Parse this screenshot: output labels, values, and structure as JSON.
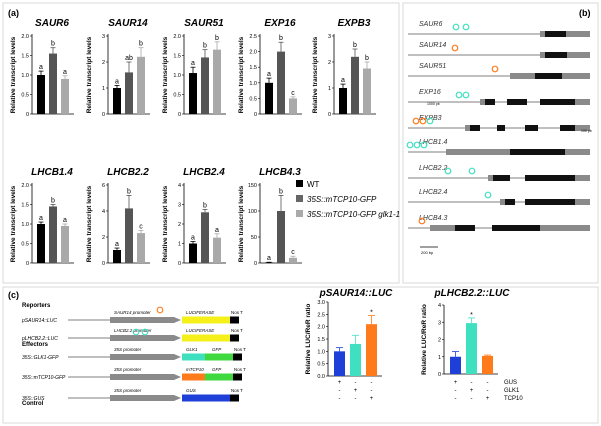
{
  "panel_labels": {
    "a": "(a)",
    "b": "(b)",
    "c": "(c)"
  },
  "ylabel": "Relative transcript levels",
  "colors": {
    "wt": "#000000",
    "mtcp": "#555555",
    "mtcp_glk": "#a9a9a9",
    "gus": "#1f3fd9",
    "glk1": "#3fe0c0",
    "tcp10": "#ff7a1a",
    "luc": "#f5f01a",
    "gfp": "#3fd93f",
    "promoter": "#8a8a8a",
    "legend_mtcp": "#666666",
    "legend_mtcp_glk": "#aaaaaa"
  },
  "legend": [
    {
      "label": "WT",
      "color": "#000000"
    },
    {
      "label": "35S::mTCP10-GFP",
      "color": "#666666"
    },
    {
      "label": "35S::mTCP10-GFP glk1-1",
      "color": "#aaaaaa"
    }
  ],
  "chart_data": [
    {
      "type": "bar",
      "title": "SAUR6",
      "ylabel": "Relative transcript levels",
      "ylim": [
        0,
        2
      ],
      "yticks": [
        "0",
        "0.5",
        "1.0",
        "1.5",
        "2.0"
      ],
      "series": [
        {
          "name": "WT",
          "values": [
            1.0
          ]
        },
        {
          "name": "35S::mTCP10-GFP",
          "values": [
            1.55
          ]
        },
        {
          "name": "35S::mTCP10-GFP glk1-1",
          "values": [
            0.9
          ]
        }
      ],
      "errors": [
        0.1,
        0.15,
        0.08
      ],
      "letters": [
        "a",
        "b",
        "a"
      ]
    },
    {
      "type": "bar",
      "title": "SAUR14",
      "ylabel": "Relative transcript levels",
      "ylim": [
        0,
        3
      ],
      "yticks": [
        "0",
        "1",
        "2",
        "3"
      ],
      "series": [
        {
          "name": "WT",
          "values": [
            1.0
          ]
        },
        {
          "name": "35S::mTCP10-GFP",
          "values": [
            1.6
          ]
        },
        {
          "name": "35S::mTCP10-GFP glk1-1",
          "values": [
            2.2
          ]
        }
      ],
      "errors": [
        0.1,
        0.4,
        0.35
      ],
      "letters": [
        "a",
        "ab",
        "b"
      ]
    },
    {
      "type": "bar",
      "title": "SAUR51",
      "ylabel": "Relative transcript levels",
      "ylim": [
        0,
        2
      ],
      "yticks": [
        "0",
        "0.5",
        "1.0",
        "1.5",
        "2.0"
      ],
      "series": [
        {
          "name": "WT",
          "values": [
            1.05
          ]
        },
        {
          "name": "35S::mTCP10-GFP",
          "values": [
            1.45
          ]
        },
        {
          "name": "35S::mTCP10-GFP glk1-1",
          "values": [
            1.65
          ]
        }
      ],
      "errors": [
        0.15,
        0.2,
        0.2
      ],
      "letters": [
        "a",
        "b",
        "b"
      ]
    },
    {
      "type": "bar",
      "title": "EXP16",
      "ylabel": "Relative transcript levels",
      "ylim": [
        0,
        2.5
      ],
      "yticks": [
        "0",
        "0.5",
        "1.0",
        "1.5",
        "2.0",
        "2.5"
      ],
      "series": [
        {
          "name": "WT",
          "values": [
            1.0
          ]
        },
        {
          "name": "35S::mTCP10-GFP",
          "values": [
            2.0
          ]
        },
        {
          "name": "35S::mTCP10-GFP glk1-1",
          "values": [
            0.5
          ]
        }
      ],
      "errors": [
        0.15,
        0.3,
        0.05
      ],
      "letters": [
        "a",
        "b",
        "c"
      ]
    },
    {
      "type": "bar",
      "title": "EXPB3",
      "ylabel": "Relative transcript levels",
      "ylim": [
        0,
        3
      ],
      "yticks": [
        "0",
        "1",
        "2",
        "3"
      ],
      "series": [
        {
          "name": "WT",
          "values": [
            1.0
          ]
        },
        {
          "name": "35S::mTCP10-GFP",
          "values": [
            2.2
          ]
        },
        {
          "name": "35S::mTCP10-GFP glk1-1",
          "values": [
            1.75
          ]
        }
      ],
      "errors": [
        0.15,
        0.3,
        0.25
      ],
      "letters": [
        "a",
        "b",
        "b"
      ]
    },
    {
      "type": "bar",
      "title": "LHCB1.4",
      "ylabel": "Relative transcript levels",
      "ylim": [
        0,
        2
      ],
      "yticks": [
        "0",
        "0.5",
        "1.0",
        "1.5",
        "2.0"
      ],
      "series": [
        {
          "name": "WT",
          "values": [
            1.0
          ]
        },
        {
          "name": "35S::mTCP10-GFP",
          "values": [
            1.45
          ]
        },
        {
          "name": "35S::mTCP10-GFP glk1-1",
          "values": [
            0.95
          ]
        }
      ],
      "errors": [
        0.05,
        0.05,
        0.05
      ],
      "letters": [
        "a",
        "b",
        "a"
      ]
    },
    {
      "type": "bar",
      "title": "LHCB2.2",
      "ylabel": "Relative transcript levels",
      "ylim": [
        0,
        6
      ],
      "yticks": [
        "0",
        "2",
        "4",
        "6"
      ],
      "series": [
        {
          "name": "WT",
          "values": [
            1.0
          ]
        },
        {
          "name": "35S::mTCP10-GFP",
          "values": [
            4.2
          ]
        },
        {
          "name": "35S::mTCP10-GFP glk1-1",
          "values": [
            2.3
          ]
        }
      ],
      "errors": [
        0.15,
        1.0,
        0.2
      ],
      "letters": [
        "a",
        "b",
        "c"
      ]
    },
    {
      "type": "bar",
      "title": "LHCB2.4",
      "ylabel": "Relative transcript levels",
      "ylim": [
        0,
        4
      ],
      "yticks": [
        "0",
        "1",
        "2",
        "3",
        "4"
      ],
      "series": [
        {
          "name": "WT",
          "values": [
            1.0
          ]
        },
        {
          "name": "35S::mTCP10-GFP",
          "values": [
            2.6
          ]
        },
        {
          "name": "35S::mTCP10-GFP glk1-1",
          "values": [
            1.3
          ]
        }
      ],
      "errors": [
        0.1,
        0.15,
        0.2
      ],
      "letters": [
        "a",
        "b",
        "a"
      ]
    },
    {
      "type": "bar",
      "title": "LHCB4.3",
      "ylabel": "Relative transcript levels",
      "ylim": [
        0,
        150
      ],
      "yticks": [
        "0",
        "50",
        "100",
        "150"
      ],
      "series": [
        {
          "name": "WT",
          "values": [
            1.0
          ]
        },
        {
          "name": "35S::mTCP10-GFP",
          "values": [
            100.0
          ]
        },
        {
          "name": "35S::mTCP10-GFP glk1-1",
          "values": [
            10.0
          ]
        }
      ],
      "errors": [
        0.5,
        30.0,
        3.0
      ],
      "letters": [
        "a",
        "b",
        "c"
      ]
    },
    {
      "type": "bar",
      "title": "pSAUR14::LUC",
      "ylabel": "Relative LUC/ReR ratio",
      "ylim": [
        0,
        3.0
      ],
      "yticks": [
        "0.0",
        "0.5",
        "1.0",
        "1.5",
        "2.0",
        "2.5",
        "3.0"
      ],
      "categories": [
        "GUS",
        "GLK1",
        "TCP10"
      ],
      "values": [
        1.0,
        1.3,
        2.1
      ],
      "errors": [
        0.15,
        0.35,
        0.35
      ],
      "letters": [
        "",
        "",
        "*"
      ]
    },
    {
      "type": "bar",
      "title": "pLHCB2.2::LUC",
      "ylabel": "Relative LUC/ReR ratio",
      "ylim": [
        0,
        4
      ],
      "yticks": [
        "0",
        "1",
        "2",
        "3",
        "4"
      ],
      "categories": [
        "GUS",
        "GLK1",
        "TCP10"
      ],
      "values": [
        1.0,
        2.95,
        1.05
      ],
      "errors": [
        0.3,
        0.3,
        0.05
      ],
      "letters": [
        "",
        "*",
        ""
      ]
    }
  ],
  "treatment_table": {
    "rows": [
      "GUS",
      "GLK1",
      "TCP10"
    ],
    "saur": [
      [
        "+",
        "-",
        "-"
      ],
      [
        "-",
        "+",
        "-"
      ],
      [
        "-",
        "-",
        "+"
      ]
    ],
    "lhcb": [
      [
        "+",
        "-",
        "-"
      ],
      [
        "-",
        "+",
        "-"
      ],
      [
        "-",
        "-",
        "+"
      ]
    ]
  },
  "gene_structures": {
    "genes": [
      "SAUR6",
      "SAUR14",
      "SAUR51",
      "EXP16",
      "EXPB3",
      "LHCB1.4",
      "LHCB2.2",
      "LHCB2.4",
      "LHCB4.3"
    ],
    "scale_labels": {
      "exp16": "1000 pb",
      "expb3": "100 pb",
      "bottom": "200 bp"
    }
  },
  "constructs": {
    "reporters_title": "Reporters",
    "effectors_title": "Effectors",
    "control_title": "Control",
    "rows": [
      {
        "name": "pSAUR14::LUC",
        "promoter": "SAUR14 promoter",
        "cds": "LUCIFERASE",
        "term": "Nos T"
      },
      {
        "name": "pLHCB2.2::LUC",
        "promoter": "LHCB2.2 promoter",
        "cds": "LUCIFERASE",
        "term": "Nos T"
      },
      {
        "name": "35S::GLK1-GFP",
        "promoter": "35S promoter",
        "cds": "GLK1",
        "tag": "GFP",
        "term": "Nos T"
      },
      {
        "name": "35S::mTCP10-GFP",
        "promoter": "35S promoter",
        "cds": "mTCP10",
        "tag": "GFP",
        "term": "Nos T"
      },
      {
        "name": "35S::GUS",
        "promoter": "35S promoter",
        "cds": "GUS",
        "term": "Nos T"
      }
    ]
  }
}
